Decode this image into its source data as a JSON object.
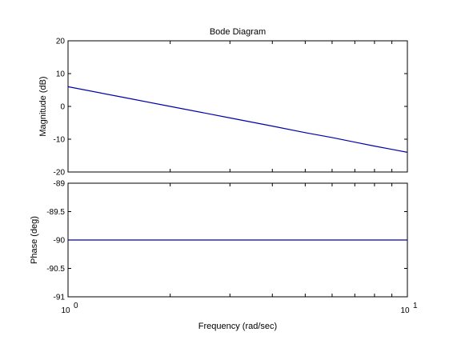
{
  "chart_data": {
    "type": "line",
    "title": "Bode Diagram",
    "xlabel": "Frequency  (rad/sec)",
    "x_scale": "log",
    "x_ticks": [
      {
        "value": 1,
        "base": "10",
        "exp": "0"
      },
      {
        "value": 10,
        "base": "10",
        "exp": "1"
      }
    ],
    "xlim": [
      1,
      10
    ],
    "grid": false,
    "line_color": "#0000aa",
    "subplots": [
      {
        "name": "magnitude",
        "ylabel": "Magnitude (dB)",
        "ylim": [
          -20,
          20
        ],
        "y_ticks": [
          {
            "value": 20,
            "label": "20"
          },
          {
            "value": 10,
            "label": "10"
          },
          {
            "value": 0,
            "label": "0"
          },
          {
            "value": -10,
            "label": "-10"
          },
          {
            "value": -20,
            "label": "-20"
          }
        ],
        "series": [
          {
            "x": [
              1,
              1.5,
              2,
              3,
              4,
              5,
              6,
              7,
              8,
              9,
              10
            ],
            "y": [
              6.0,
              2.5,
              0.0,
              -3.5,
              -6.0,
              -8.0,
              -9.5,
              -10.9,
              -12.1,
              -13.1,
              -14.0
            ]
          }
        ]
      },
      {
        "name": "phase",
        "ylabel": "Phase (deg)",
        "ylim": [
          -91,
          -89
        ],
        "y_ticks": [
          {
            "value": -89,
            "label": "-89"
          },
          {
            "value": -89.5,
            "label": "-89.5"
          },
          {
            "value": -90,
            "label": "-90"
          },
          {
            "value": -90.5,
            "label": "-90.5"
          },
          {
            "value": -91,
            "label": "-91"
          }
        ],
        "series": [
          {
            "x": [
              1,
              10
            ],
            "y": [
              -90,
              -90
            ]
          }
        ]
      }
    ]
  }
}
